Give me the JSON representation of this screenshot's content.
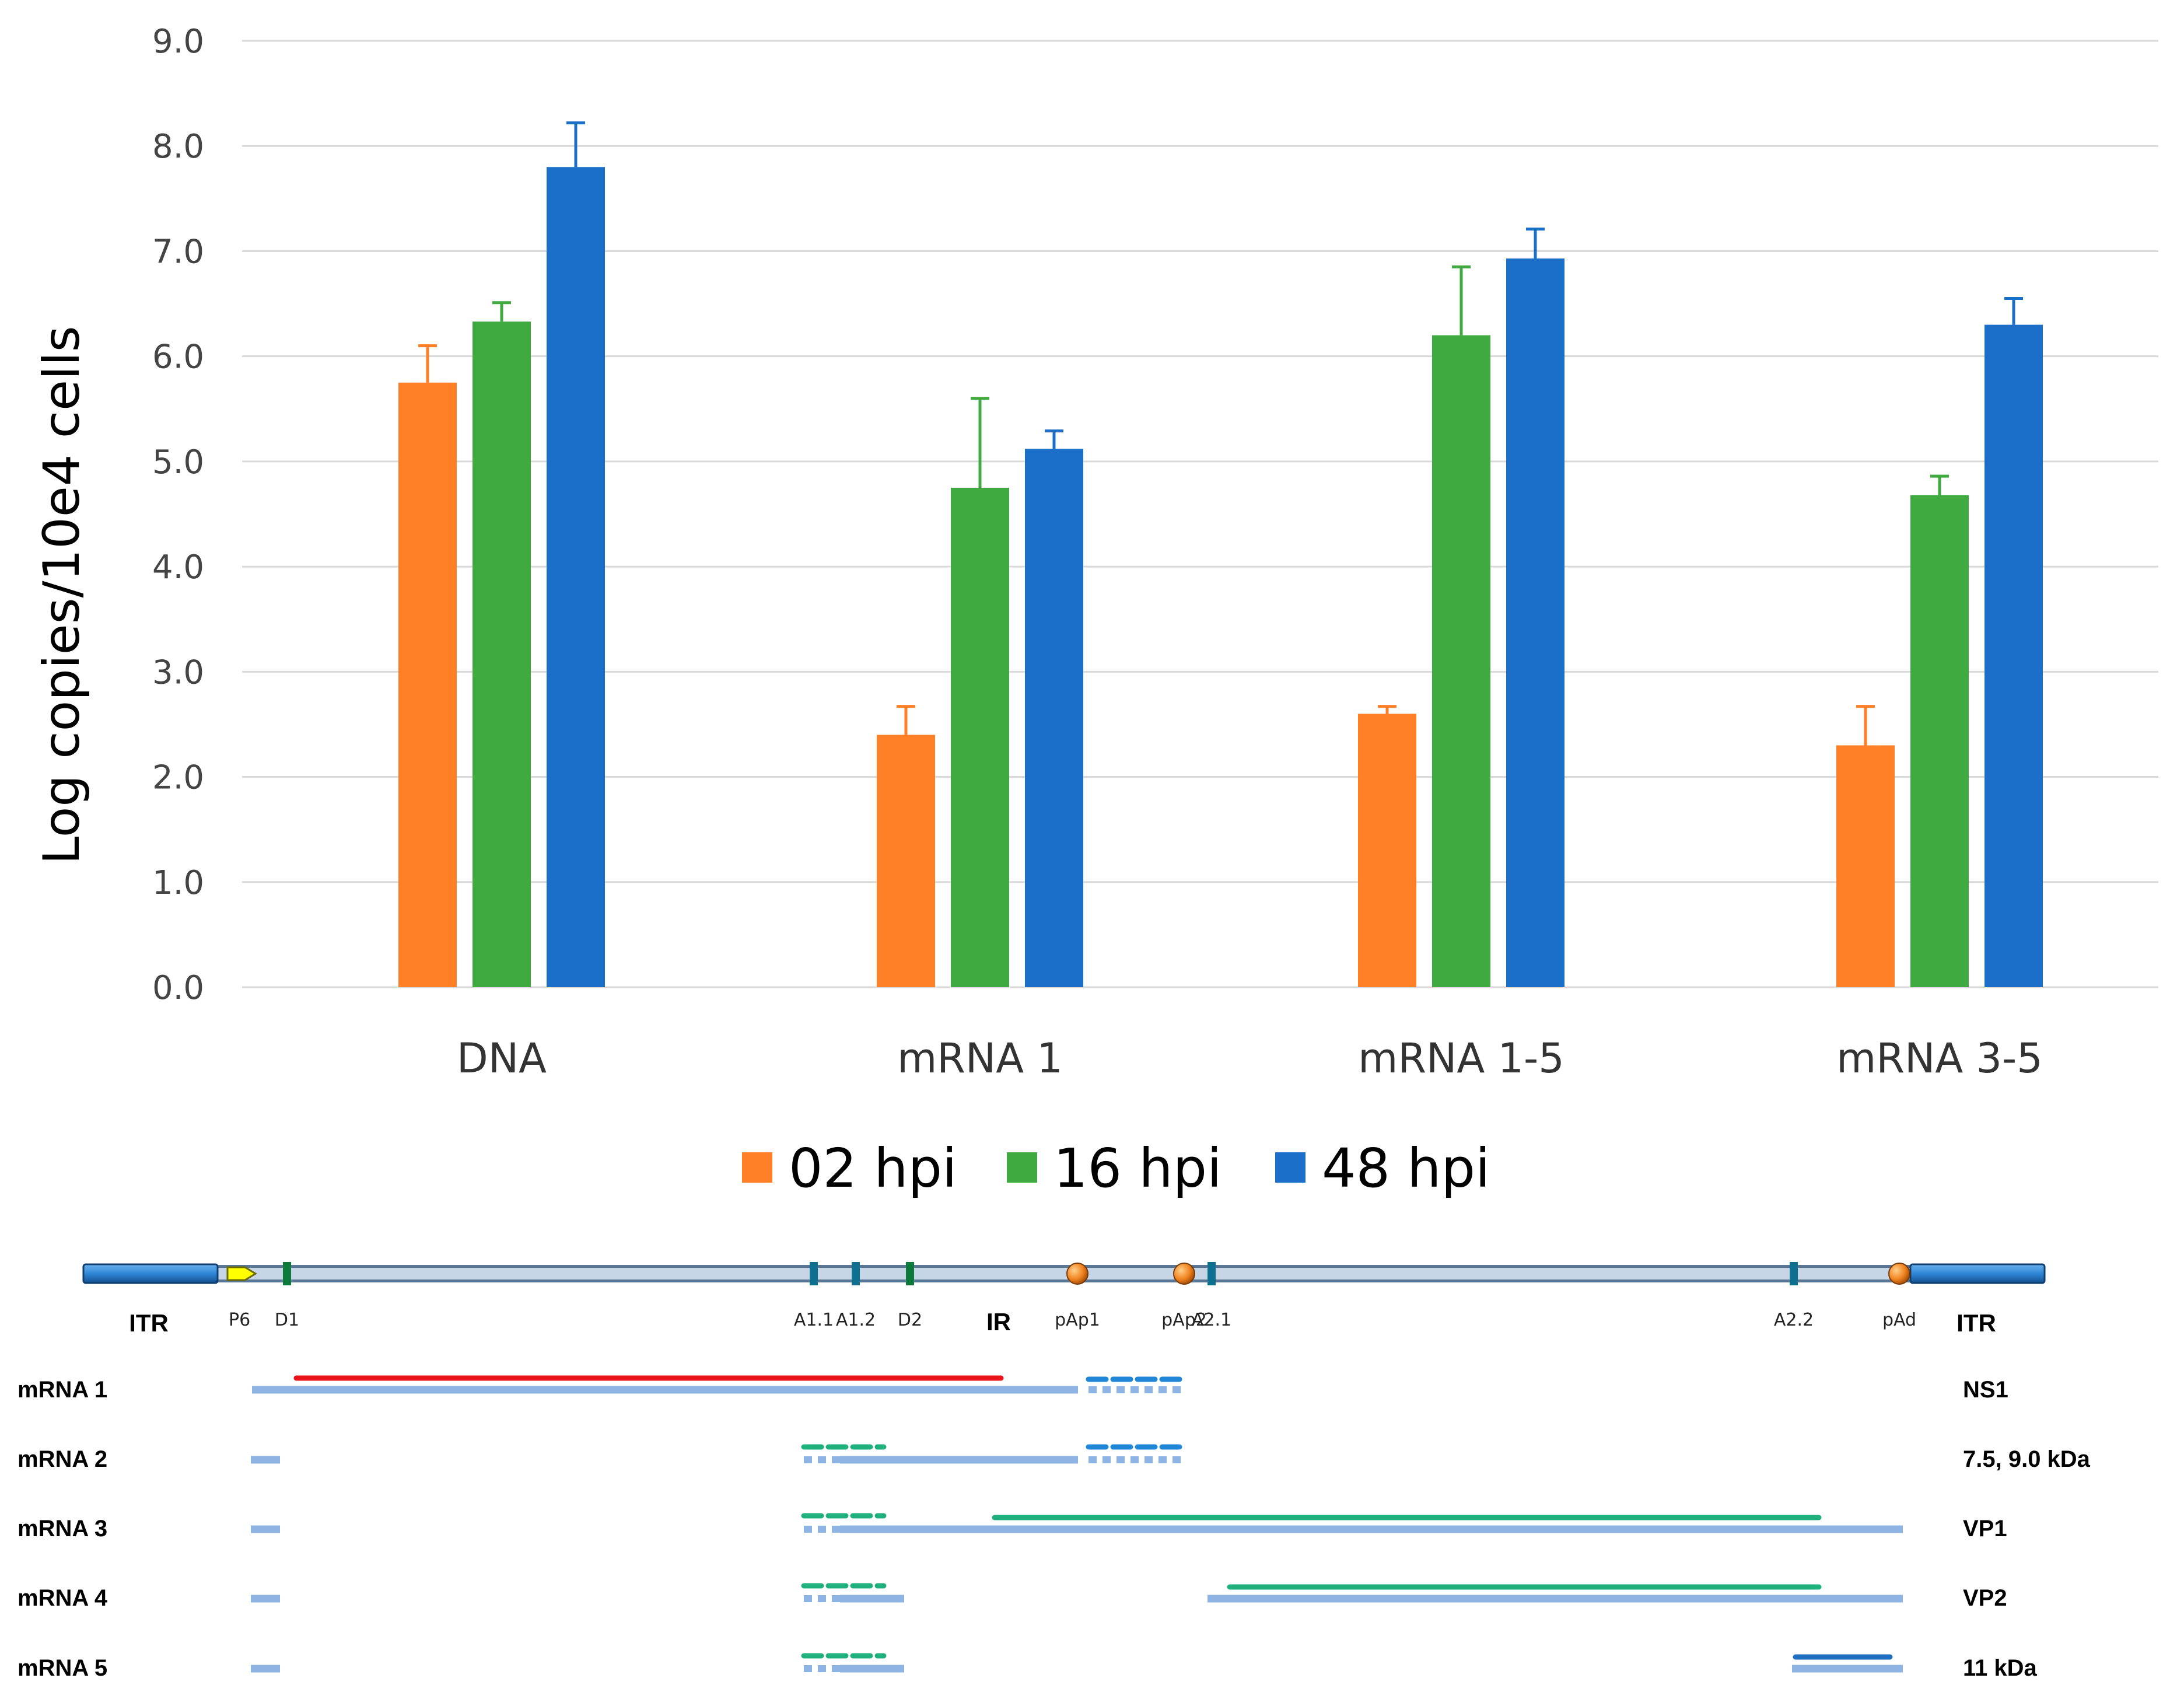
{
  "chart_data": {
    "type": "bar",
    "title": "",
    "xlabel": "",
    "ylabel": "Log copies/10e4 cells",
    "ylim": [
      0,
      9
    ],
    "yticks": [
      "0.0",
      "1.0",
      "2.0",
      "3.0",
      "4.0",
      "5.0",
      "6.0",
      "7.0",
      "8.0",
      "9.0"
    ],
    "grid": true,
    "legend_position": "bottom",
    "categories": [
      "DNA",
      "mRNA 1",
      "mRNA 1-5",
      "mRNA 3-5"
    ],
    "series": [
      {
        "name": "02 hpi",
        "color": "#FF7F27",
        "values": [
          5.75,
          2.4,
          2.6,
          2.3
        ],
        "errors": [
          0.35,
          0.27,
          0.07,
          0.37
        ]
      },
      {
        "name": "16 hpi",
        "color": "#3FAA3F",
        "values": [
          6.33,
          4.75,
          6.2,
          4.68
        ],
        "errors": [
          0.18,
          0.85,
          0.65,
          0.18
        ]
      },
      {
        "name": "48 hpi",
        "color": "#1B6FC8",
        "values": [
          7.8,
          5.12,
          6.93,
          6.3
        ],
        "errors": [
          0.42,
          0.17,
          0.28,
          0.25
        ]
      }
    ]
  },
  "genome_map": {
    "ends": [
      "ITR",
      "ITR"
    ],
    "promoter": "P6",
    "ir_label": "IR",
    "sites": [
      {
        "label": "D1",
        "pos": 492,
        "kind": "donor"
      },
      {
        "label": "A1.1",
        "pos": 1395,
        "kind": "acceptor"
      },
      {
        "label": "A1.2",
        "pos": 1467,
        "kind": "acceptor"
      },
      {
        "label": "D2",
        "pos": 1560,
        "kind": "donor"
      },
      {
        "label": "pAp1",
        "pos": 1847,
        "kind": "polyA"
      },
      {
        "label": "pAp2",
        "pos": 2030,
        "kind": "polyA"
      },
      {
        "label": "A2.1",
        "pos": 2077,
        "kind": "acceptor"
      },
      {
        "label": "A2.2",
        "pos": 3075,
        "kind": "acceptor"
      },
      {
        "label": "pAd",
        "pos": 3256,
        "kind": "polyA"
      }
    ],
    "transcripts": [
      {
        "name": "mRNA 1",
        "product": "NS1"
      },
      {
        "name": "mRNA 2",
        "product": "7.5, 9.0 kDa"
      },
      {
        "name": "mRNA 3",
        "product": "VP1"
      },
      {
        "name": "mRNA 4",
        "product": "VP2"
      },
      {
        "name": "mRNA 5",
        "product": "11 kDa"
      }
    ]
  }
}
